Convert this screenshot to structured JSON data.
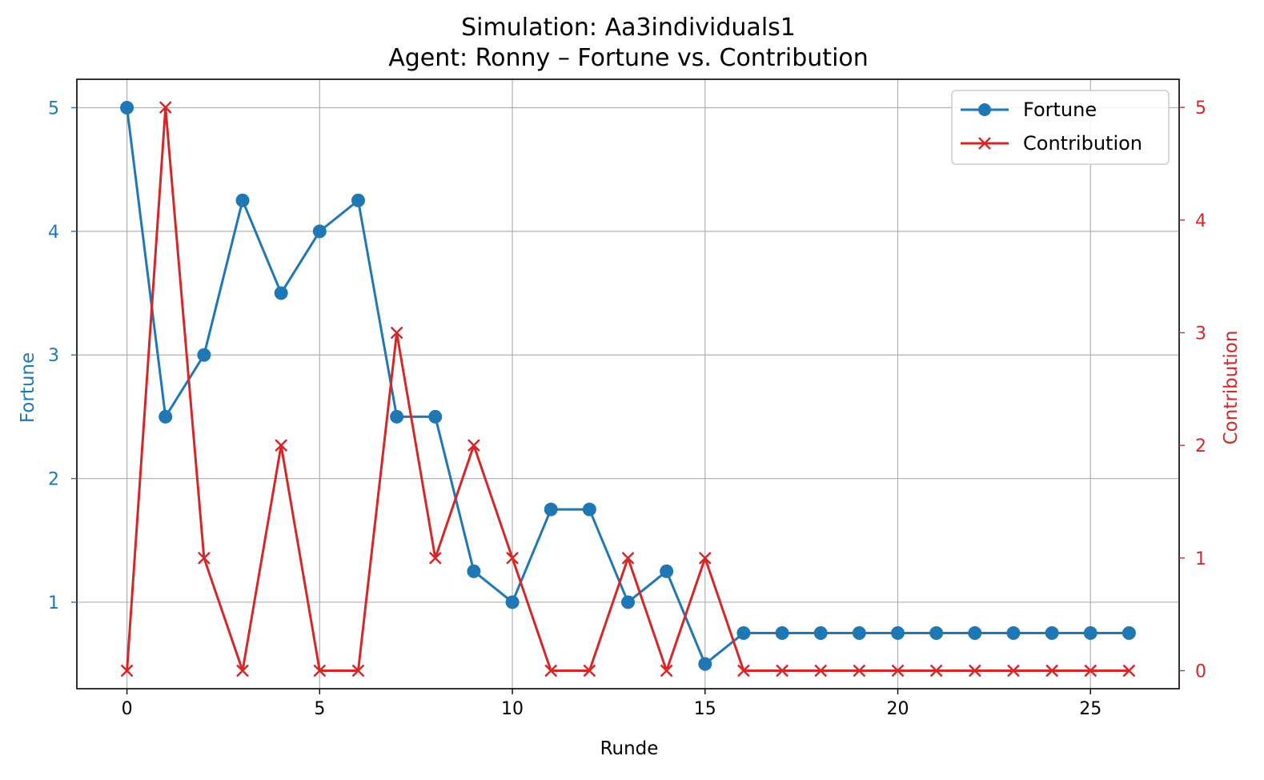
{
  "chart_data": {
    "type": "line",
    "title": "Simulation: Aa3individuals1",
    "subtitle": "Agent: Ronny – Fortune vs. Contribution",
    "xlabel": "Runde",
    "ylabel_left": "Fortune",
    "ylabel_right": "Contribution",
    "xlim": [
      -1.3,
      27.3
    ],
    "ylim_left": [
      0.3,
      5.23
    ],
    "ylim_right": [
      -0.16,
      5.25
    ],
    "x_ticks": [
      0,
      5,
      10,
      15,
      20,
      25
    ],
    "y_ticks_left": [
      1,
      2,
      3,
      4,
      5
    ],
    "y_ticks_right": [
      0,
      1,
      2,
      3,
      4,
      5
    ],
    "grid": true,
    "legend_position": "top-right",
    "x": [
      0,
      1,
      2,
      3,
      4,
      5,
      6,
      7,
      8,
      9,
      10,
      11,
      12,
      13,
      14,
      15,
      16,
      17,
      18,
      19,
      20,
      21,
      22,
      23,
      24,
      25,
      26
    ],
    "series": [
      {
        "name": "Fortune",
        "axis": "left",
        "marker": "circle",
        "color": "#1f77b4",
        "values": [
          5,
          2.5,
          3,
          4.25,
          3.5,
          4,
          4.25,
          2.5,
          2.5,
          1.25,
          1,
          1.75,
          1.75,
          1,
          1.25,
          0.5,
          0.75,
          0.75,
          0.75,
          0.75,
          0.75,
          0.75,
          0.75,
          0.75,
          0.75,
          0.75,
          0.75
        ]
      },
      {
        "name": "Contribution",
        "axis": "right",
        "marker": "x",
        "color": "#d62728",
        "values": [
          0,
          5,
          1,
          0,
          2,
          0,
          0,
          3,
          1,
          2,
          1,
          0,
          0,
          1,
          0,
          1,
          0,
          0,
          0,
          0,
          0,
          0,
          0,
          0,
          0,
          0,
          0
        ]
      }
    ]
  }
}
